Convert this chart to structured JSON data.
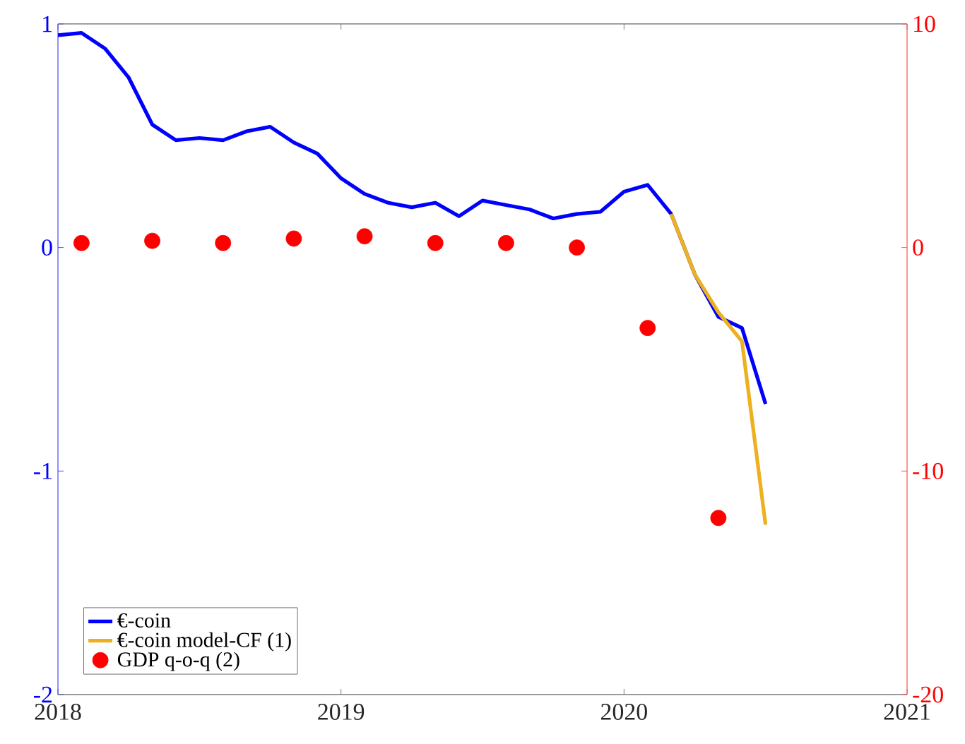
{
  "chart_data": {
    "type": "line",
    "xlim": [
      "2018",
      "2021"
    ],
    "xticks": [
      "2018",
      "2019",
      "2020",
      "2021"
    ],
    "ylim": [
      -2,
      1
    ],
    "yticks": [
      -2,
      -1,
      0,
      1
    ],
    "y2lim": [
      -20,
      10
    ],
    "y2ticks": [
      -20,
      -10,
      0,
      10
    ],
    "legend": "bottom left",
    "series": [
      {
        "name": "€-coin",
        "color": "#0000ff",
        "x": [
          "2018-01",
          "2018-02",
          "2018-03",
          "2018-04",
          "2018-05",
          "2018-06",
          "2018-07",
          "2018-08",
          "2018-09",
          "2018-10",
          "2018-11",
          "2018-12",
          "2019-01",
          "2019-02",
          "2019-03",
          "2019-04",
          "2019-05",
          "2019-06",
          "2019-07",
          "2019-08",
          "2019-09",
          "2019-10",
          "2019-11",
          "2019-12",
          "2020-01",
          "2020-02",
          "2020-03",
          "2020-04",
          "2020-05",
          "2020-06",
          "2020-07"
        ],
        "values": [
          0.95,
          0.96,
          0.89,
          0.76,
          0.55,
          0.48,
          0.49,
          0.48,
          0.52,
          0.54,
          0.47,
          0.42,
          0.31,
          0.24,
          0.2,
          0.18,
          0.2,
          0.14,
          0.21,
          0.19,
          0.17,
          0.13,
          0.15,
          0.16,
          0.25,
          0.28,
          0.15,
          -0.12,
          -0.31,
          -0.36,
          -0.7
        ]
      },
      {
        "name": "€-coin model-CF (1)",
        "color": "#edb120",
        "x": [
          "2020-03",
          "2020-04",
          "2020-05",
          "2020-06",
          "2020-07"
        ],
        "values": [
          0.15,
          -0.12,
          -0.29,
          -0.42,
          -1.24
        ]
      },
      {
        "name": "GDP q-o-q (2)",
        "type": "scatter",
        "axis": "y2",
        "color": "#ff0000",
        "x": [
          "2018-02",
          "2018-05",
          "2018-08",
          "2018-11",
          "2019-02",
          "2019-05",
          "2019-08",
          "2019-11",
          "2020-02",
          "2020-05"
        ],
        "values": [
          0.2,
          0.3,
          0.2,
          0.4,
          0.5,
          0.2,
          0.2,
          0.0,
          -3.6,
          -12.1
        ]
      }
    ]
  }
}
